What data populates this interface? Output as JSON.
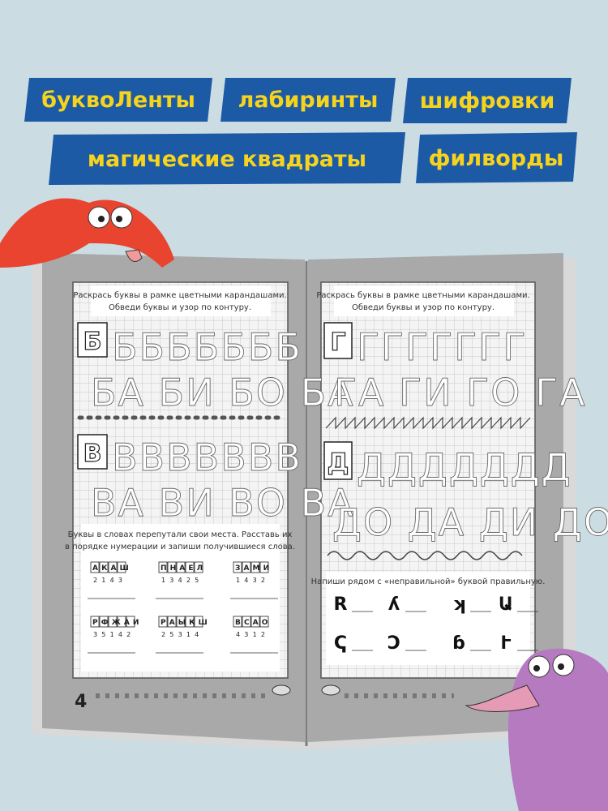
{
  "banners": [
    "буквоЛенты",
    "лабиринты",
    "шифровки",
    "магические квадраты",
    "филворды"
  ],
  "left_page": {
    "instruction": [
      "Раскрась буквы в рамке цветными карандашами.",
      "Обведи буквы и узор по контуру."
    ],
    "letter1": "Б",
    "row1": "БББББББ",
    "row2": "БА БИ БО БА",
    "letter2": "В",
    "row3": "ВВВВВВВ",
    "row4": "ВА ВИ ВО ВА",
    "task": [
      "Буквы в словах перепутали свои места. Расставь их",
      "в порядке нумерации и запиши получившиеся слова."
    ],
    "puzzles": [
      {
        "letters": "АКАШ",
        "numbers": "2143"
      },
      {
        "letters": "ПНАЕЛ",
        "numbers": "13425"
      },
      {
        "letters": "ЗАМИ",
        "numbers": "1432"
      },
      {
        "letters": "РФЖАИ",
        "numbers": "35142"
      },
      {
        "letters": "РАЫКШ",
        "numbers": "25314"
      },
      {
        "letters": "ВСАО",
        "numbers": "4312"
      }
    ],
    "page_number": 4
  },
  "right_page": {
    "instruction": [
      "Раскрась буквы в рамке цветными карандашами.",
      "Обведи буквы и узор по контуру."
    ],
    "letter1": "Г",
    "row1": "ГГГГГГГ",
    "row2": "ГА ГИ ГО ГА",
    "letter2": "Д",
    "row3": "ДДДДДДД",
    "row4": "ДО ДА ДИ ДО",
    "task": "Напиши рядом с «неправильной» буквой правильную.",
    "mirrored": [
      [
        "R",
        "ʎ",
        "ʞ",
        "Ա"
      ],
      [
        "Ҁ",
        "Ɔ",
        "ɓ",
        "Ւ"
      ]
    ]
  }
}
